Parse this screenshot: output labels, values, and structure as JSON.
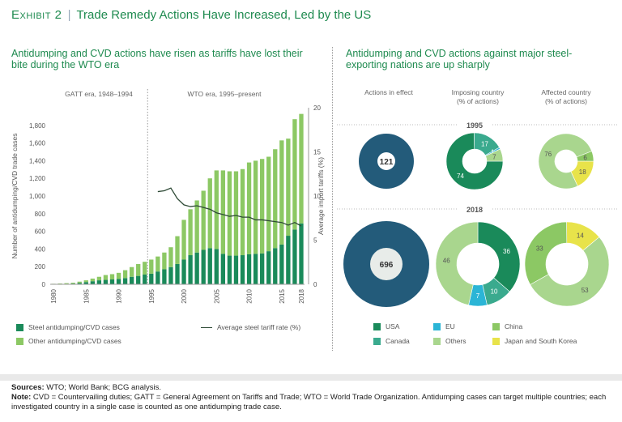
{
  "header": {
    "exhibit_label": "Exhibit 2",
    "separator": "|",
    "title": "Trade Remedy Actions Have Increased, Led by the US"
  },
  "left_panel": {
    "title": "Antidumping and CVD actions have risen as tariffs have lost their bite during the WTO era",
    "era_labels": {
      "gatt": "GATT era, 1948–1994",
      "wto": "WTO era, 1995–present"
    },
    "legend": {
      "steel": "Steel antidumping/CVD cases",
      "other": "Other antidumping/CVD cases",
      "tariff": "Average steel tariff rate (%)"
    }
  },
  "right_panel": {
    "title": "Antidumping and CVD actions against major steel-exporting nations are up sharply",
    "col_heads": {
      "actions": "Actions in effect",
      "imposing": "Imposing country\n(% of actions)",
      "affected": "Affected country\n(% of actions)"
    },
    "legend": {
      "usa": "USA",
      "eu": "EU",
      "china": "China",
      "canada": "Canada",
      "others": "Others",
      "japan_korea": "Japan and South Korea"
    }
  },
  "footer": {
    "sources_label": "Sources:",
    "sources": "WTO; World Bank; BCG analysis.",
    "note_label": "Note:",
    "note": "CVD = Countervailing duties; GATT = General Agreement on Tariffs and Trade; WTO = World Trade Organization. Antidumping cases can target multiple countries; each investigated country in a single case is counted as one antidumping trade case."
  },
  "colors": {
    "steel": "#1a8a5a",
    "other": "#8cc864",
    "tariff": "#2e4a36",
    "navy": "#235b7a",
    "usa": "#1a8a5a",
    "eu": "#2bb5d6",
    "china": "#8cc864",
    "canada": "#3aaa8e",
    "others": "#a9d68e",
    "japan_korea": "#e8e34a"
  },
  "chart_data": [
    {
      "type": "bar",
      "subtype": "stacked_bar_with_line",
      "title": "Antidumping and CVD actions have risen as tariffs have lost their bite during the WTO era",
      "ylabel": "Number of antidumping/CVD trade cases",
      "y2label": "Average import tariffs (%)",
      "ylim": [
        0,
        2000
      ],
      "y2lim": [
        0,
        20
      ],
      "yticks": [
        0,
        200,
        400,
        600,
        800,
        1000,
        1200,
        1400,
        1600,
        1800
      ],
      "y2ticks": [
        0,
        5,
        10,
        15,
        20
      ],
      "x": [
        1980,
        1981,
        1982,
        1983,
        1984,
        1985,
        1986,
        1987,
        1988,
        1989,
        1990,
        1991,
        1992,
        1993,
        1994,
        1995,
        1996,
        1997,
        1998,
        1999,
        2000,
        2001,
        2002,
        2003,
        2004,
        2005,
        2006,
        2007,
        2008,
        2009,
        2010,
        2011,
        2012,
        2013,
        2014,
        2015,
        2016,
        2017,
        2018
      ],
      "xticks": [
        1980,
        1985,
        1990,
        1995,
        2000,
        2005,
        2010,
        2015,
        2018
      ],
      "series": [
        {
          "name": "Steel antidumping/CVD cases",
          "values": [
            2,
            3,
            5,
            8,
            15,
            25,
            35,
            45,
            50,
            55,
            60,
            70,
            85,
            95,
            110,
            120,
            145,
            170,
            195,
            230,
            280,
            330,
            360,
            390,
            410,
            400,
            345,
            325,
            325,
            330,
            340,
            345,
            350,
            375,
            410,
            450,
            550,
            620,
            690
          ]
        },
        {
          "name": "Other antidumping/CVD cases",
          "values": [
            4,
            6,
            8,
            10,
            15,
            20,
            30,
            40,
            55,
            60,
            70,
            90,
            110,
            135,
            145,
            160,
            170,
            190,
            225,
            315,
            450,
            520,
            590,
            670,
            790,
            890,
            945,
            955,
            955,
            975,
            1040,
            1055,
            1070,
            1070,
            1120,
            1180,
            1100,
            1250,
            1240
          ]
        },
        {
          "name": "Average steel tariff rate (%)",
          "axis": "y2",
          "x": [
            1996,
            1997,
            1998,
            1999,
            2000,
            2001,
            2002,
            2003,
            2004,
            2005,
            2006,
            2007,
            2008,
            2009,
            2010,
            2011,
            2012,
            2013,
            2014,
            2015,
            2016,
            2017,
            2018
          ],
          "values": [
            10.5,
            10.6,
            10.9,
            9.7,
            9.0,
            8.8,
            8.9,
            8.7,
            8.5,
            8.1,
            7.9,
            7.7,
            7.8,
            7.6,
            7.6,
            7.3,
            7.3,
            7.2,
            7.1,
            7.0,
            6.7,
            7.0,
            6.6
          ]
        }
      ]
    },
    {
      "type": "pie",
      "subtype": "donut",
      "title": "Antidumping and CVD actions against major steel-exporting nations are up sharply",
      "years": [
        {
          "year": "1995",
          "actions_in_effect": 121,
          "imposing": [
            {
              "name": "USA",
              "value": 74
            },
            {
              "name": "Canada",
              "value": 17
            },
            {
              "name": "EU",
              "value": 1
            },
            {
              "name": "Others",
              "value": 7
            }
          ],
          "affected": [
            {
              "name": "Others",
              "value": 76
            },
            {
              "name": "China",
              "value": 6
            },
            {
              "name": "Japan and South Korea",
              "value": 18
            }
          ]
        },
        {
          "year": "2018",
          "actions_in_effect": 696,
          "imposing": [
            {
              "name": "USA",
              "value": 36
            },
            {
              "name": "Canada",
              "value": 10
            },
            {
              "name": "EU",
              "value": 7
            },
            {
              "name": "Others",
              "value": 46
            }
          ],
          "affected": [
            {
              "name": "Others",
              "value": 53
            },
            {
              "name": "China",
              "value": 33
            },
            {
              "name": "Japan and South Korea",
              "value": 14
            }
          ]
        }
      ]
    }
  ]
}
